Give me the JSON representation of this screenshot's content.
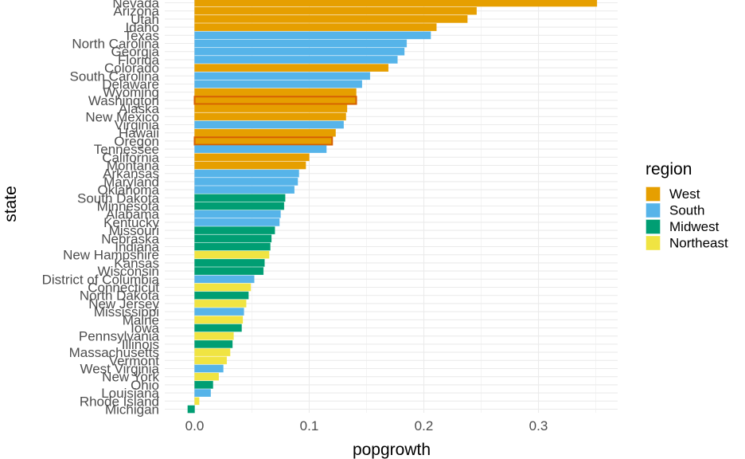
{
  "chart_data": {
    "type": "bar",
    "orientation": "horizontal",
    "xlabel": "popgrowth",
    "ylabel": "state",
    "xlim": [
      -0.02,
      0.37
    ],
    "xticks": [
      0.0,
      0.1,
      0.2,
      0.3
    ],
    "xtick_labels": [
      "0.0",
      "0.1",
      "0.2",
      "0.3"
    ],
    "grid": true,
    "legend": {
      "title": "region",
      "position": "right",
      "entries": [
        {
          "name": "West",
          "color": "#E69F00"
        },
        {
          "name": "South",
          "color": "#56B4E9"
        },
        {
          "name": "Midwest",
          "color": "#009E73"
        },
        {
          "name": "Northeast",
          "color": "#F0E442"
        }
      ]
    },
    "highlight_color": "#D55E00",
    "bars": [
      {
        "state": "Nevada",
        "value": 0.351,
        "region": "West"
      },
      {
        "state": "Arizona",
        "value": 0.246,
        "region": "West"
      },
      {
        "state": "Utah",
        "value": 0.238,
        "region": "West"
      },
      {
        "state": "Idaho",
        "value": 0.211,
        "region": "West"
      },
      {
        "state": "Texas",
        "value": 0.206,
        "region": "South"
      },
      {
        "state": "North Carolina",
        "value": 0.185,
        "region": "South"
      },
      {
        "state": "Georgia",
        "value": 0.183,
        "region": "South"
      },
      {
        "state": "Florida",
        "value": 0.177,
        "region": "South"
      },
      {
        "state": "Colorado",
        "value": 0.169,
        "region": "West"
      },
      {
        "state": "South Carolina",
        "value": 0.153,
        "region": "South"
      },
      {
        "state": "Delaware",
        "value": 0.146,
        "region": "South"
      },
      {
        "state": "Wyoming",
        "value": 0.141,
        "region": "West"
      },
      {
        "state": "Washington",
        "value": 0.141,
        "region": "West",
        "highlight": true
      },
      {
        "state": "Alaska",
        "value": 0.133,
        "region": "West"
      },
      {
        "state": "New Mexico",
        "value": 0.132,
        "region": "West"
      },
      {
        "state": "Virginia",
        "value": 0.13,
        "region": "South"
      },
      {
        "state": "Hawaii",
        "value": 0.123,
        "region": "West"
      },
      {
        "state": "Oregon",
        "value": 0.12,
        "region": "West",
        "highlight": true
      },
      {
        "state": "Tennessee",
        "value": 0.115,
        "region": "South"
      },
      {
        "state": "California",
        "value": 0.1,
        "region": "West"
      },
      {
        "state": "Montana",
        "value": 0.097,
        "region": "West"
      },
      {
        "state": "Arkansas",
        "value": 0.091,
        "region": "South"
      },
      {
        "state": "Maryland",
        "value": 0.09,
        "region": "South"
      },
      {
        "state": "Oklahoma",
        "value": 0.087,
        "region": "South"
      },
      {
        "state": "South Dakota",
        "value": 0.079,
        "region": "Midwest"
      },
      {
        "state": "Minnesota",
        "value": 0.078,
        "region": "Midwest"
      },
      {
        "state": "Alabama",
        "value": 0.075,
        "region": "South"
      },
      {
        "state": "Kentucky",
        "value": 0.074,
        "region": "South"
      },
      {
        "state": "Missouri",
        "value": 0.07,
        "region": "Midwest"
      },
      {
        "state": "Nebraska",
        "value": 0.067,
        "region": "Midwest"
      },
      {
        "state": "Indiana",
        "value": 0.066,
        "region": "Midwest"
      },
      {
        "state": "New Hampshire",
        "value": 0.065,
        "region": "Northeast"
      },
      {
        "state": "Kansas",
        "value": 0.061,
        "region": "Midwest"
      },
      {
        "state": "Wisconsin",
        "value": 0.06,
        "region": "Midwest"
      },
      {
        "state": "District of Columbia",
        "value": 0.052,
        "region": "South"
      },
      {
        "state": "Connecticut",
        "value": 0.049,
        "region": "Northeast"
      },
      {
        "state": "North Dakota",
        "value": 0.047,
        "region": "Midwest"
      },
      {
        "state": "New Jersey",
        "value": 0.045,
        "region": "Northeast"
      },
      {
        "state": "Mississippi",
        "value": 0.043,
        "region": "South"
      },
      {
        "state": "Maine",
        "value": 0.042,
        "region": "Northeast"
      },
      {
        "state": "Iowa",
        "value": 0.041,
        "region": "Midwest"
      },
      {
        "state": "Pennsylvania",
        "value": 0.034,
        "region": "Northeast"
      },
      {
        "state": "Illinois",
        "value": 0.033,
        "region": "Midwest"
      },
      {
        "state": "Massachusetts",
        "value": 0.031,
        "region": "Northeast"
      },
      {
        "state": "Vermont",
        "value": 0.028,
        "region": "Northeast"
      },
      {
        "state": "West Virginia",
        "value": 0.025,
        "region": "South"
      },
      {
        "state": "New York",
        "value": 0.021,
        "region": "Northeast"
      },
      {
        "state": "Ohio",
        "value": 0.016,
        "region": "Midwest"
      },
      {
        "state": "Louisiana",
        "value": 0.014,
        "region": "South"
      },
      {
        "state": "Rhode Island",
        "value": 0.004,
        "region": "Northeast"
      },
      {
        "state": "Michigan",
        "value": -0.006,
        "region": "Midwest"
      }
    ]
  }
}
